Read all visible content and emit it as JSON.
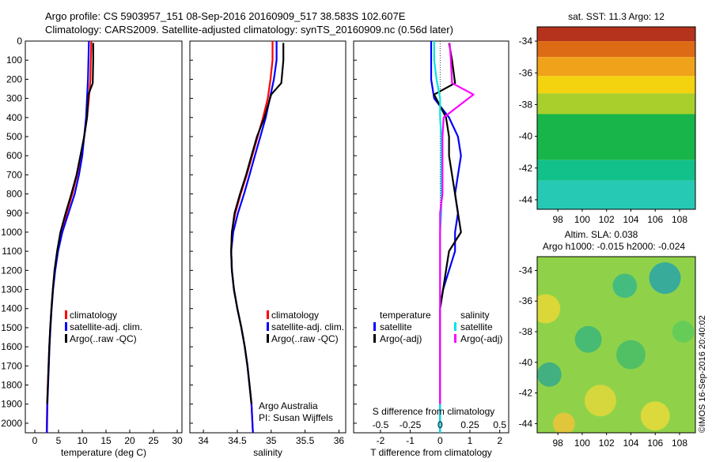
{
  "header": {
    "line1": "Argo profile: CS 5903957_151 08-Sep-2016 20160909_517 38.583S 102.607E",
    "line2": "Climatology: CARS2009. Satellite-adjusted climatology: synTS_20160909.nc (0.56d later)"
  },
  "colors": {
    "climatology": "#ff0000",
    "satellite": "#0000ff",
    "argo": "#000000",
    "salinity_satellite": "#00e5e5",
    "salinity_argo": "#ff00ff"
  },
  "chart_data": [
    {
      "id": "temperature",
      "type": "line",
      "xlabel": "temperature (deg C)",
      "ylabel": "",
      "xlim": [
        -2,
        31
      ],
      "ylim": [
        2050,
        0
      ],
      "xticks": [
        0,
        5,
        10,
        15,
        20,
        25,
        30
      ],
      "yticks": [
        0,
        100,
        200,
        300,
        400,
        500,
        600,
        700,
        800,
        900,
        1000,
        1100,
        1200,
        1300,
        1400,
        1500,
        1600,
        1700,
        1800,
        1900,
        2000
      ],
      "legend": [
        "climatology",
        "satellite-adj. clim.",
        "Argo(..raw -QC)"
      ],
      "series": [
        {
          "name": "climatology",
          "color_key": "climatology",
          "x": [
            11.9,
            11.8,
            11.7,
            11.4,
            11.0,
            10.4,
            9.7,
            8.9,
            7.9,
            6.7,
            5.6,
            4.8,
            4.2,
            3.8,
            3.5,
            3.25,
            3.05,
            2.9,
            2.75,
            2.6,
            2.5
          ],
          "y": [
            0,
            100,
            200,
            300,
            400,
            500,
            600,
            700,
            800,
            900,
            1000,
            1100,
            1200,
            1300,
            1400,
            1500,
            1600,
            1700,
            1800,
            1900,
            2050
          ]
        },
        {
          "name": "satellite-adj. clim.",
          "color_key": "satellite",
          "x": [
            11.4,
            11.3,
            11.2,
            11.0,
            10.8,
            10.4,
            10.0,
            9.3,
            8.4,
            7.1,
            5.8,
            4.9,
            4.3,
            3.85,
            3.55,
            3.3,
            3.1,
            2.95,
            2.8,
            2.65,
            2.55
          ],
          "y": [
            0,
            100,
            200,
            300,
            400,
            500,
            600,
            700,
            800,
            900,
            1000,
            1100,
            1200,
            1300,
            1400,
            1500,
            1600,
            1700,
            1800,
            1900,
            2050
          ]
        },
        {
          "name": "Argo(..raw -QC)",
          "color_key": "argo",
          "x": [
            12.3,
            12.3,
            12.2,
            11.3,
            11.0,
            10.4,
            9.6,
            8.8,
            7.7,
            6.5,
            5.4,
            4.7,
            4.15,
            3.8,
            3.5,
            3.25,
            3.05,
            2.9,
            2.75,
            2.6
          ],
          "y": [
            10,
            100,
            220,
            280,
            400,
            500,
            600,
            700,
            800,
            900,
            1000,
            1100,
            1200,
            1300,
            1400,
            1500,
            1600,
            1700,
            1800,
            1900
          ]
        }
      ]
    },
    {
      "id": "salinity",
      "type": "line",
      "xlabel": "salinity",
      "ylabel": "",
      "xlim": [
        33.8,
        36.1
      ],
      "ylim": [
        2050,
        0
      ],
      "xticks": [
        34,
        34.5,
        35,
        35.5,
        36
      ],
      "xticklabels": [
        "34",
        "34.5",
        "35",
        "35.5",
        "36"
      ],
      "legend": [
        "climatology",
        "satellite-adj. clim.",
        "Argo(..raw -QC)"
      ],
      "annotation": [
        "Argo Australia",
        "PI: Susan Wijffels"
      ],
      "series": [
        {
          "name": "climatology",
          "color_key": "climatology",
          "x": [
            35.02,
            35.02,
            34.99,
            34.95,
            34.88,
            34.8,
            34.72,
            34.64,
            34.55,
            34.47,
            34.42,
            34.41,
            34.42,
            34.45,
            34.5,
            34.56,
            34.61,
            34.65,
            34.68,
            34.71,
            34.73
          ],
          "y": [
            0,
            100,
            200,
            300,
            400,
            500,
            600,
            700,
            800,
            900,
            1000,
            1100,
            1200,
            1300,
            1400,
            1500,
            1600,
            1700,
            1800,
            1900,
            2050
          ]
        },
        {
          "name": "satellite-adj. clim.",
          "color_key": "satellite",
          "x": [
            35.08,
            35.08,
            35.04,
            34.98,
            34.92,
            34.84,
            34.76,
            34.68,
            34.6,
            34.51,
            34.44,
            34.41,
            34.42,
            34.45,
            34.5,
            34.56,
            34.61,
            34.65,
            34.68,
            34.71,
            34.73
          ],
          "y": [
            0,
            100,
            200,
            300,
            400,
            500,
            600,
            700,
            800,
            900,
            1000,
            1100,
            1200,
            1300,
            1400,
            1500,
            1600,
            1700,
            1800,
            1900,
            2050
          ]
        },
        {
          "name": "Argo(..raw -QC)",
          "color_key": "argo",
          "x": [
            35.18,
            35.18,
            35.15,
            35.0,
            34.9,
            34.79,
            34.71,
            34.63,
            34.54,
            34.46,
            34.42,
            34.41,
            34.42,
            34.45,
            34.5,
            34.56,
            34.61,
            34.65,
            34.68,
            34.71
          ],
          "y": [
            10,
            100,
            220,
            280,
            400,
            500,
            600,
            700,
            800,
            900,
            1000,
            1100,
            1200,
            1300,
            1400,
            1500,
            1600,
            1700,
            1800,
            1900
          ]
        }
      ]
    },
    {
      "id": "difference",
      "type": "line",
      "xlabel": "T difference from climatology",
      "xlabel_top": "S difference from climatology",
      "xlim": [
        -2.9,
        2.3
      ],
      "ylim": [
        2050,
        0
      ],
      "xticks": [
        -2,
        -1,
        0,
        1,
        2
      ],
      "xticks_top": [
        -0.5,
        -0.25,
        0,
        0.25,
        0.5
      ],
      "legend_headers": [
        "temperature",
        "salinity"
      ],
      "legend": [
        "satellite",
        "Argo(-adj)",
        "satellite",
        "Argo(-adj)"
      ],
      "series": [
        {
          "name": "temperature satellite",
          "color_key": "satellite",
          "x": [
            -0.3,
            -0.3,
            -0.3,
            -0.2,
            0.3,
            0.6,
            0.7,
            0.6,
            0.5,
            0.6,
            0.5,
            0.5,
            0.3,
            0.1,
            0.0,
            0.0,
            0.0,
            0.0,
            0.0,
            0.0,
            0.0
          ],
          "y": [
            0,
            100,
            200,
            300,
            400,
            500,
            600,
            700,
            800,
            900,
            1000,
            1100,
            1200,
            1300,
            1400,
            1500,
            1600,
            1700,
            1800,
            1900,
            2050
          ]
        },
        {
          "name": "temperature Argo(-adj)",
          "color_key": "argo",
          "x": [
            0.3,
            0.4,
            0.5,
            -0.2,
            0.2,
            0.3,
            0.3,
            0.4,
            0.5,
            0.6,
            0.7,
            0.3,
            0.2,
            0.1,
            0.0,
            0.0,
            0.0,
            0.0,
            0.0,
            0.0
          ],
          "y": [
            10,
            100,
            220,
            280,
            400,
            500,
            600,
            700,
            800,
            900,
            1000,
            1100,
            1200,
            1300,
            1400,
            1500,
            1600,
            1700,
            1800,
            1900
          ]
        },
        {
          "name": "salinity satellite",
          "color_key": "salinity_satellite",
          "x": [
            -0.05,
            -0.05,
            -0.03,
            0.0,
            0.0,
            0.01,
            0.01,
            0.01,
            0.01,
            0.01,
            0.0,
            0.0,
            0.0,
            0.0,
            0.0,
            0.0,
            0.0,
            0.0,
            0.0,
            0.0,
            0.0
          ],
          "y": [
            0,
            100,
            200,
            300,
            400,
            500,
            600,
            700,
            800,
            900,
            1000,
            1100,
            1200,
            1300,
            1400,
            1500,
            1600,
            1700,
            1800,
            1900,
            2050
          ]
        },
        {
          "name": "salinity Argo(-adj)",
          "color_key": "salinity_argo",
          "x": [
            0.08,
            0.09,
            0.1,
            0.28,
            0.03,
            0.02,
            0.02,
            0.02,
            0.02,
            0.0,
            0.0,
            0.0,
            0.0,
            0.0,
            0.0,
            0.0,
            0.0,
            0.0,
            0.0,
            0.0
          ],
          "y": [
            10,
            100,
            220,
            280,
            400,
            500,
            600,
            700,
            800,
            900,
            1000,
            1100,
            1200,
            1300,
            1400,
            1500,
            1600,
            1700,
            1800,
            1900
          ]
        }
      ]
    },
    {
      "id": "sst_map",
      "type": "heatmap",
      "title": "sat. SST: 11.3 Argo: 12",
      "xticks": [
        98,
        100,
        102,
        104,
        106,
        108
      ],
      "yticks": [
        -34,
        -36,
        -38,
        -40,
        -42,
        -44
      ],
      "xlim": [
        96.3,
        109.3
      ],
      "ylim": [
        -44.6,
        -33.1
      ],
      "colorbands": [
        {
          "lat_top": -33.1,
          "color": "#b5321c"
        },
        {
          "lat_top": -34.0,
          "color": "#dd6a14"
        },
        {
          "lat_top": -35.0,
          "color": "#f0a21a"
        },
        {
          "lat_top": -36.2,
          "color": "#f3d20f"
        },
        {
          "lat_top": -37.3,
          "color": "#a8cf2b"
        },
        {
          "lat_top": -38.6,
          "color": "#18b54a"
        },
        {
          "lat_top": -41.5,
          "color": "#12c08a"
        },
        {
          "lat_top": -42.8,
          "color": "#25c9b4"
        }
      ]
    },
    {
      "id": "sla_map",
      "type": "heatmap",
      "title": "Altim. SLA: 0.038",
      "subtitle": "Argo h1000: -0.015 h2000: -0.024",
      "xticks": [
        98,
        100,
        102,
        104,
        106,
        108
      ],
      "yticks": [
        -34,
        -36,
        -38,
        -40,
        -42,
        -44
      ],
      "xlim": [
        96.3,
        109.3
      ],
      "ylim": [
        -44.6,
        -33.1
      ],
      "background": "#8fd24a",
      "blobs": [
        {
          "lon": 97.0,
          "lat": -36.5,
          "r": 1.2,
          "color": "#e9d835"
        },
        {
          "lon": 106.8,
          "lat": -34.5,
          "r": 1.3,
          "color": "#2aa4a8"
        },
        {
          "lon": 103.5,
          "lat": -35.0,
          "r": 1.0,
          "color": "#38b888"
        },
        {
          "lon": 100.5,
          "lat": -38.5,
          "r": 1.1,
          "color": "#3bb67a"
        },
        {
          "lon": 97.3,
          "lat": -40.8,
          "r": 1.0,
          "color": "#35aa8a"
        },
        {
          "lon": 104.0,
          "lat": -39.5,
          "r": 1.2,
          "color": "#46bd6a"
        },
        {
          "lon": 108.3,
          "lat": -38.0,
          "r": 0.9,
          "color": "#5fcb5a"
        },
        {
          "lon": 101.5,
          "lat": -42.5,
          "r": 1.3,
          "color": "#e2d83a"
        },
        {
          "lon": 106.0,
          "lat": -43.5,
          "r": 1.2,
          "color": "#eada3a"
        },
        {
          "lon": 98.5,
          "lat": -44.0,
          "r": 0.9,
          "color": "#f0c43a"
        }
      ]
    }
  ],
  "side_label": "©IMOS 16-Sep-2016 20:40:02"
}
